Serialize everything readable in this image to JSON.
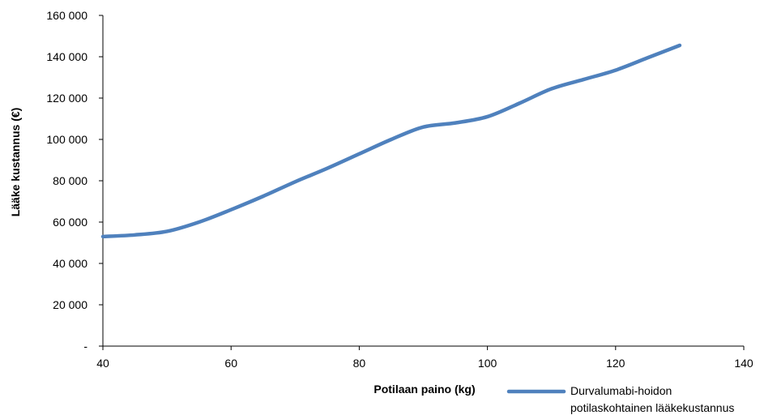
{
  "chart_data": {
    "type": "line",
    "xlabel": "Potilaan paino (kg)",
    "ylabel": "Lääke kustannus (€)",
    "xlim": [
      40,
      140
    ],
    "ylim": [
      0,
      160000
    ],
    "x_ticks": [
      "40",
      "60",
      "80",
      "100",
      "120",
      "140"
    ],
    "y_ticks": [
      "-",
      "20 000",
      "40 000",
      "60 000",
      "80 000",
      "100 000",
      "120 000",
      "140 000",
      "160 000"
    ],
    "grid": false,
    "legend_position": "bottom-right",
    "series": [
      {
        "name": "Durvalumabi-hoidon potilaskohtainen lääkekustannus",
        "legend_lines": [
          "Durvalumabi-hoidon",
          "potilaskohtainen lääkekustannus"
        ],
        "color": "#4F81BD",
        "x": [
          40,
          45,
          50,
          55,
          60,
          65,
          70,
          75,
          80,
          85,
          90,
          95,
          100,
          105,
          110,
          115,
          120,
          125,
          130
        ],
        "y": [
          53000,
          53800,
          55500,
          60000,
          66000,
          72500,
          79500,
          86000,
          93000,
          100000,
          106000,
          108000,
          111000,
          117500,
          124500,
          129000,
          133500,
          139500,
          145500
        ]
      }
    ]
  }
}
